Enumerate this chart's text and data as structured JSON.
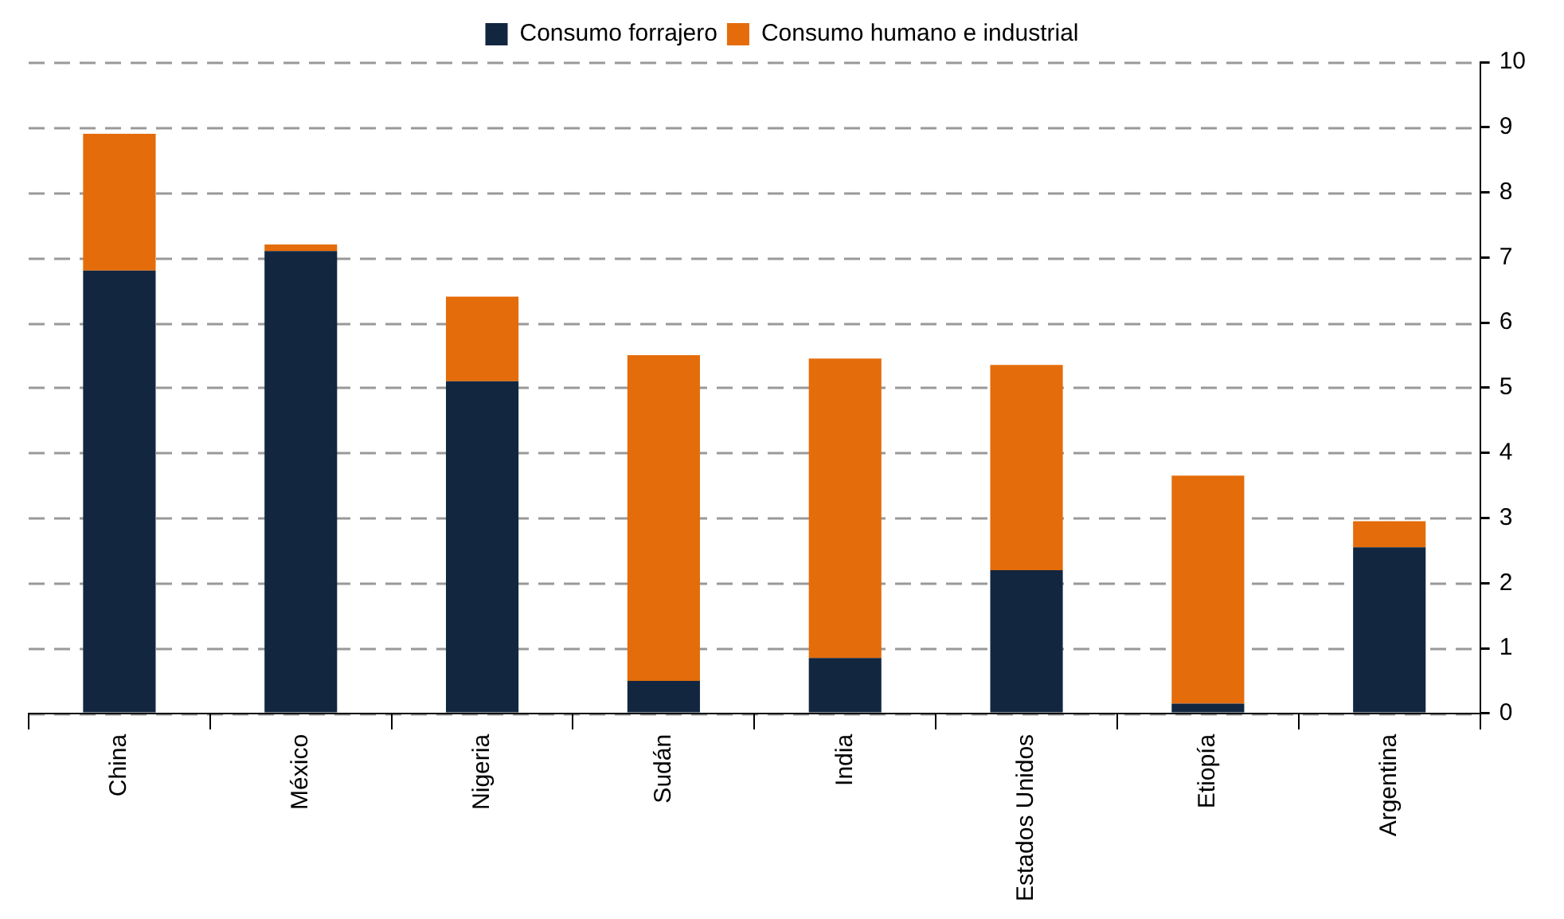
{
  "chart_data": {
    "type": "bar",
    "stacked": true,
    "categories": [
      "China",
      "México",
      "Nigeria",
      "Sudán",
      "India",
      "Estados Unidos",
      "Etiopía",
      "Argentina"
    ],
    "series": [
      {
        "name": "Consumo forrajero",
        "color": "#12263f",
        "values": [
          6.8,
          7.1,
          5.1,
          0.5,
          0.85,
          2.2,
          0.15,
          2.55
        ]
      },
      {
        "name": "Consumo humano e industrial",
        "color": "#e46c0a",
        "values": [
          2.1,
          0.1,
          1.3,
          5.0,
          4.6,
          3.15,
          3.5,
          0.4
        ]
      }
    ],
    "ylim": [
      0,
      10
    ],
    "yticks": [
      0,
      1,
      2,
      3,
      4,
      5,
      6,
      7,
      8,
      9,
      10
    ],
    "grid": "y",
    "legend": "top"
  }
}
